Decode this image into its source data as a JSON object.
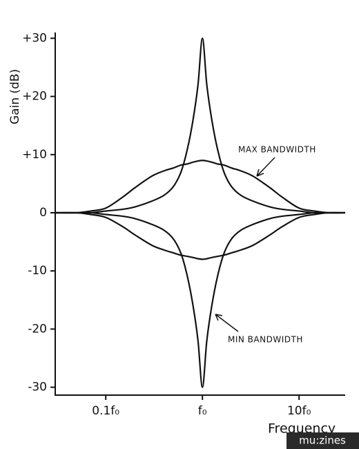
{
  "chart_data": {
    "type": "line",
    "y_label": "Gain (dB)",
    "x_label": "Frequency",
    "log_x": true,
    "color": "#111111",
    "x": [
      0.03,
      0.05,
      0.07,
      0.1,
      0.15,
      0.2,
      0.3,
      0.4,
      0.5,
      0.6,
      0.7,
      0.8,
      0.9,
      1,
      1.11,
      1.25,
      1.43,
      1.67,
      2,
      2.5,
      3.33,
      5,
      6.67,
      10,
      14.3,
      20,
      30
    ],
    "series": [
      {
        "values": [
          0,
          0,
          0,
          0.3,
          0.6,
          1,
          2,
          3,
          4.5,
          7,
          11,
          16,
          22,
          30,
          22,
          16,
          11,
          7,
          4.5,
          3,
          2,
          1,
          0.6,
          0.3,
          0,
          0,
          0
        ]
      },
      {
        "values": [
          0,
          0,
          0.3,
          0.8,
          2.7,
          4.3,
          6.3,
          7.2,
          7.7,
          8.2,
          8.4,
          8.7,
          8.9,
          9,
          8.9,
          8.7,
          8.4,
          8.2,
          7.7,
          7.2,
          6.3,
          4.3,
          2.7,
          0.8,
          0.3,
          0,
          0
        ]
      },
      {
        "values": [
          0,
          0,
          0,
          -0.3,
          -0.6,
          -1,
          -2,
          -3,
          -4.5,
          -7,
          -11,
          -16,
          -22,
          -30,
          -22,
          -16,
          -11,
          -7,
          -4.5,
          -3,
          -2,
          -1,
          -0.6,
          -0.3,
          0,
          0,
          0
        ]
      },
      {
        "values": [
          0,
          0,
          -0.3,
          -0.8,
          -2.4,
          -3.8,
          -5.6,
          -6.4,
          -6.9,
          -7.3,
          -7.5,
          -7.7,
          -7.9,
          -8,
          -7.9,
          -7.7,
          -7.5,
          -7.3,
          -6.9,
          -6.4,
          -5.6,
          -3.8,
          -2.4,
          -0.8,
          -0.3,
          0,
          0
        ]
      }
    ],
    "xlim": [
      0.03,
      30
    ],
    "xticks": [
      {
        "value": 0.1,
        "label": "0.1f₀"
      },
      {
        "value": 1,
        "label": "f₀"
      },
      {
        "value": 10,
        "label": "10f₀"
      }
    ],
    "ylim": [
      -31,
      31
    ],
    "yticks": [
      {
        "value": 30,
        "label": "+30"
      },
      {
        "value": 20,
        "label": "+20"
      },
      {
        "value": 10,
        "label": "+10"
      },
      0,
      -10,
      -20,
      -30
    ],
    "annotations": [
      "MAX BANDWIDTH",
      "MIN BANDWIDTH"
    ],
    "watermark": "mu:zines"
  }
}
